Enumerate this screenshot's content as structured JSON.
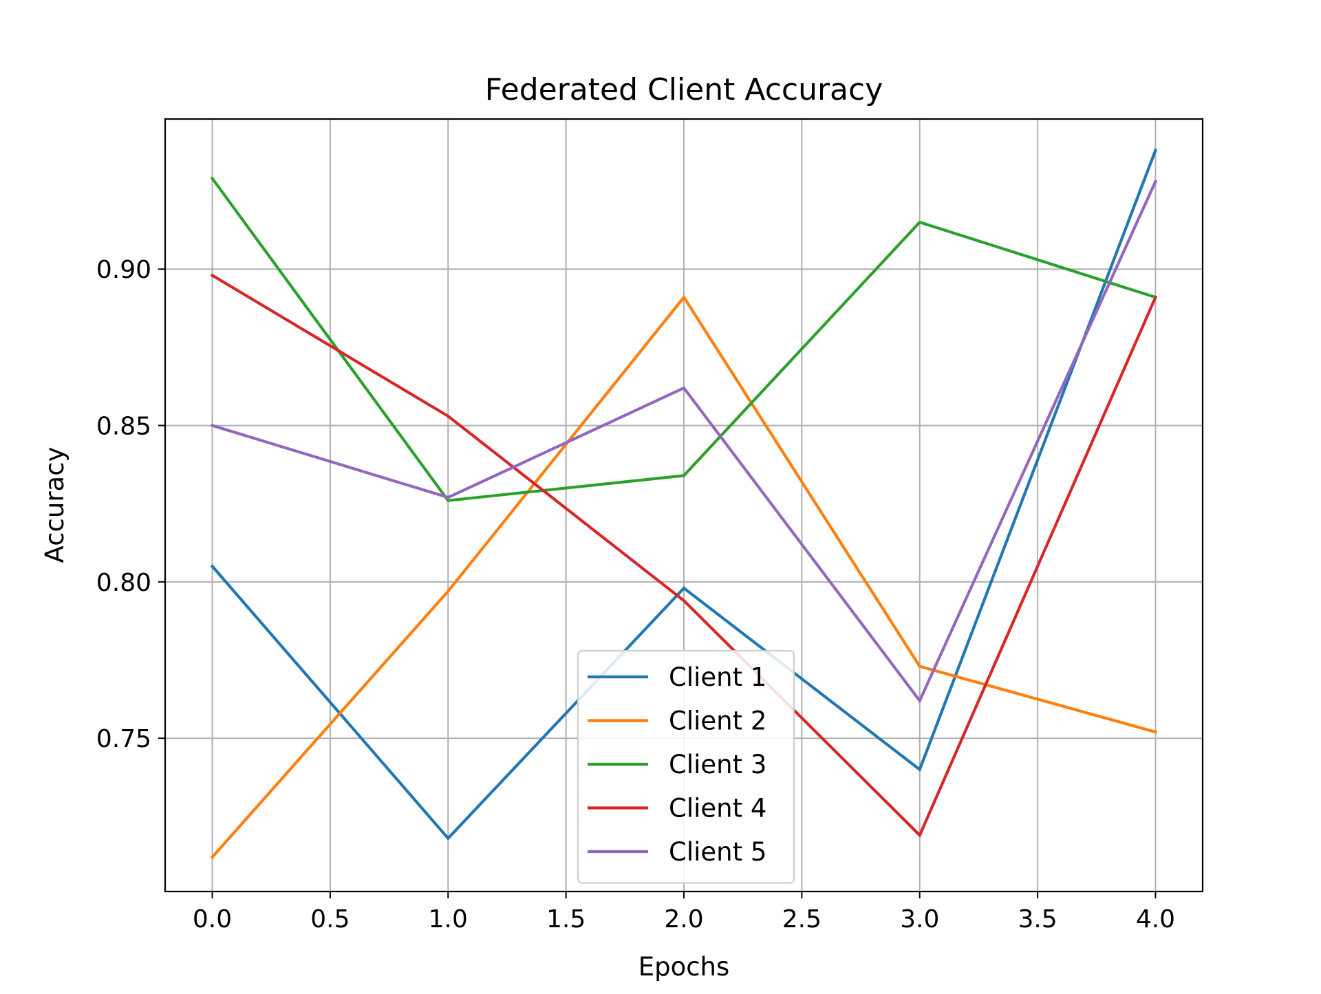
{
  "chart_data": {
    "type": "line",
    "title": "Federated Client Accuracy",
    "xlabel": "Epochs",
    "ylabel": "Accuracy",
    "xlim": [
      -0.2,
      4.2
    ],
    "ylim": [
      0.701,
      0.948
    ],
    "xticks": [
      0.0,
      0.5,
      1.0,
      1.5,
      2.0,
      2.5,
      3.0,
      3.5,
      4.0
    ],
    "xtick_labels": [
      "0.0",
      "0.5",
      "1.0",
      "1.5",
      "2.0",
      "2.5",
      "3.0",
      "3.5",
      "4.0"
    ],
    "yticks": [
      0.75,
      0.8,
      0.85,
      0.9
    ],
    "ytick_labels": [
      "0.75",
      "0.80",
      "0.85",
      "0.90"
    ],
    "grid": true,
    "legend_position": "lower center",
    "x": [
      0,
      1,
      2,
      3,
      4
    ],
    "series": [
      {
        "name": "Client 1",
        "color": "#1f77b4",
        "values": [
          0.805,
          0.718,
          0.798,
          0.74,
          0.938
        ]
      },
      {
        "name": "Client 2",
        "color": "#ff7f0e",
        "values": [
          0.712,
          0.797,
          0.891,
          0.773,
          0.752
        ]
      },
      {
        "name": "Client 3",
        "color": "#2ca02c",
        "values": [
          0.929,
          0.826,
          0.834,
          0.915,
          0.891
        ]
      },
      {
        "name": "Client 4",
        "color": "#d62728",
        "values": [
          0.898,
          0.853,
          0.794,
          0.719,
          0.891
        ]
      },
      {
        "name": "Client 5",
        "color": "#9467bd",
        "values": [
          0.85,
          0.827,
          0.862,
          0.762,
          0.928
        ]
      }
    ]
  }
}
